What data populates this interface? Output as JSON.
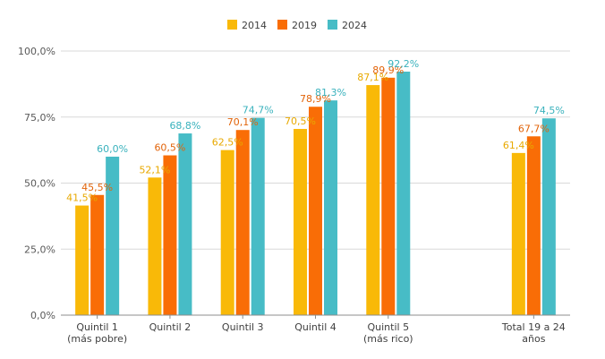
{
  "chart_data": {
    "type": "bar",
    "title": "",
    "xlabel": "",
    "ylabel": "",
    "ylim": [
      0,
      100
    ],
    "yticks": [
      "0,0%",
      "25,0%",
      "50,0%",
      "75,0%",
      "100,0%"
    ],
    "grid": true,
    "legend_position": "top",
    "categories": [
      [
        "Quintil 1",
        "(más pobre)"
      ],
      [
        "Quintil 2"
      ],
      [
        "Quintil 3"
      ],
      [
        "Quintil 4"
      ],
      [
        "Quintil 5",
        "(más rico)"
      ],
      [
        "Total 19 a 24",
        "años"
      ]
    ],
    "series": [
      {
        "name": "2014",
        "color": "#F9B908",
        "labelColor": "#E8A900",
        "values": [
          41.5,
          52.1,
          62.5,
          70.5,
          87.1,
          61.4
        ],
        "labels": [
          "41,5%",
          "52,1%",
          "62,5%",
          "70,5%",
          "87,1%",
          "61,4%"
        ]
      },
      {
        "name": "2019",
        "color": "#F96D06",
        "labelColor": "#E2640A",
        "values": [
          45.5,
          60.5,
          70.1,
          78.9,
          89.9,
          67.7
        ],
        "labels": [
          "45,5%",
          "60,5%",
          "70,1%",
          "78,9%",
          "89,9%",
          "67,7%"
        ]
      },
      {
        "name": "2024",
        "color": "#47BCC6",
        "labelColor": "#3AB2BD",
        "values": [
          60.0,
          68.8,
          74.7,
          81.3,
          92.2,
          74.5
        ],
        "labels": [
          "60,0%",
          "68,8%",
          "74,7%",
          "81,3%",
          "92,2%",
          "74,5%"
        ]
      }
    ]
  }
}
